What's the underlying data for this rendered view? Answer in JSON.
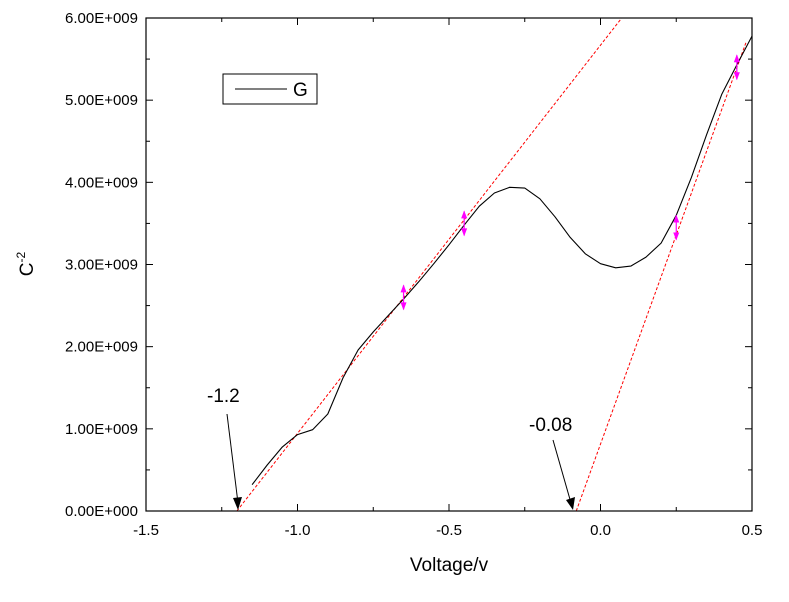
{
  "chart_data": {
    "type": "line",
    "title": "",
    "xlabel": "Voltage/v",
    "ylabel": "C",
    "ylabel_superscript": "-2",
    "xlim": [
      -1.5,
      0.5
    ],
    "ylim": [
      0,
      6000000000
    ],
    "x_ticks": [
      {
        "value": -1.5,
        "label": "-1.5"
      },
      {
        "value": -1.0,
        "label": "-1.0"
      },
      {
        "value": -0.5,
        "label": "-0.5"
      },
      {
        "value": 0.0,
        "label": "0.0"
      },
      {
        "value": 0.5,
        "label": "0.5"
      }
    ],
    "y_ticks": [
      {
        "value": 0,
        "label": "0.00E+000"
      },
      {
        "value": 1000000000,
        "label": "1.00E+009"
      },
      {
        "value": 2000000000,
        "label": "2.00E+009"
      },
      {
        "value": 3000000000,
        "label": "3.00E+009"
      },
      {
        "value": 4000000000,
        "label": "4.00E+009"
      },
      {
        "value": 5000000000,
        "label": "5.00E+009"
      },
      {
        "value": 6000000000,
        "label": "6.00E+009"
      }
    ],
    "grid": false,
    "legend": {
      "position": "top-left",
      "entries": [
        "G"
      ]
    },
    "series": [
      {
        "name": "G",
        "color": "#000000",
        "x": [
          -1.15,
          -1.1,
          -1.05,
          -1.0,
          -0.95,
          -0.9,
          -0.85,
          -0.8,
          -0.75,
          -0.7,
          -0.65,
          -0.6,
          -0.55,
          -0.5,
          -0.45,
          -0.4,
          -0.35,
          -0.3,
          -0.25,
          -0.2,
          -0.15,
          -0.1,
          -0.05,
          0.0,
          0.05,
          0.1,
          0.15,
          0.2,
          0.25,
          0.3,
          0.35,
          0.4,
          0.45,
          0.5
        ],
        "y": [
          320000000,
          560000000,
          780000000,
          930000000,
          990000000,
          1180000000,
          1620000000,
          1960000000,
          2180000000,
          2380000000,
          2580000000,
          2790000000,
          3010000000,
          3240000000,
          3480000000,
          3710000000,
          3870000000,
          3940000000,
          3930000000,
          3800000000,
          3580000000,
          3330000000,
          3130000000,
          3010000000,
          2960000000,
          2980000000,
          3090000000,
          3260000000,
          3600000000,
          4060000000,
          4580000000,
          5070000000,
          5430000000,
          5780000000
        ]
      }
    ],
    "fit_lines": [
      {
        "color": "#ff0000",
        "style": "dashed",
        "x": [
          -1.2,
          0.07
        ],
        "y": [
          0,
          6000000000
        ]
      },
      {
        "color": "#ff0000",
        "style": "dashed",
        "x": [
          -0.08,
          0.48
        ],
        "y": [
          0,
          5700000000
        ]
      }
    ],
    "error_markers": {
      "color": "#ff00ff",
      "x": [
        -0.65,
        -0.45,
        0.25,
        0.45
      ],
      "y": [
        2600000000,
        3500000000,
        3450000000,
        5400000000
      ]
    },
    "annotations": [
      {
        "text": "-1.2",
        "points_to": [
          -1.2,
          0
        ]
      },
      {
        "text": "-0.08",
        "points_to": [
          -0.08,
          0
        ]
      }
    ]
  }
}
